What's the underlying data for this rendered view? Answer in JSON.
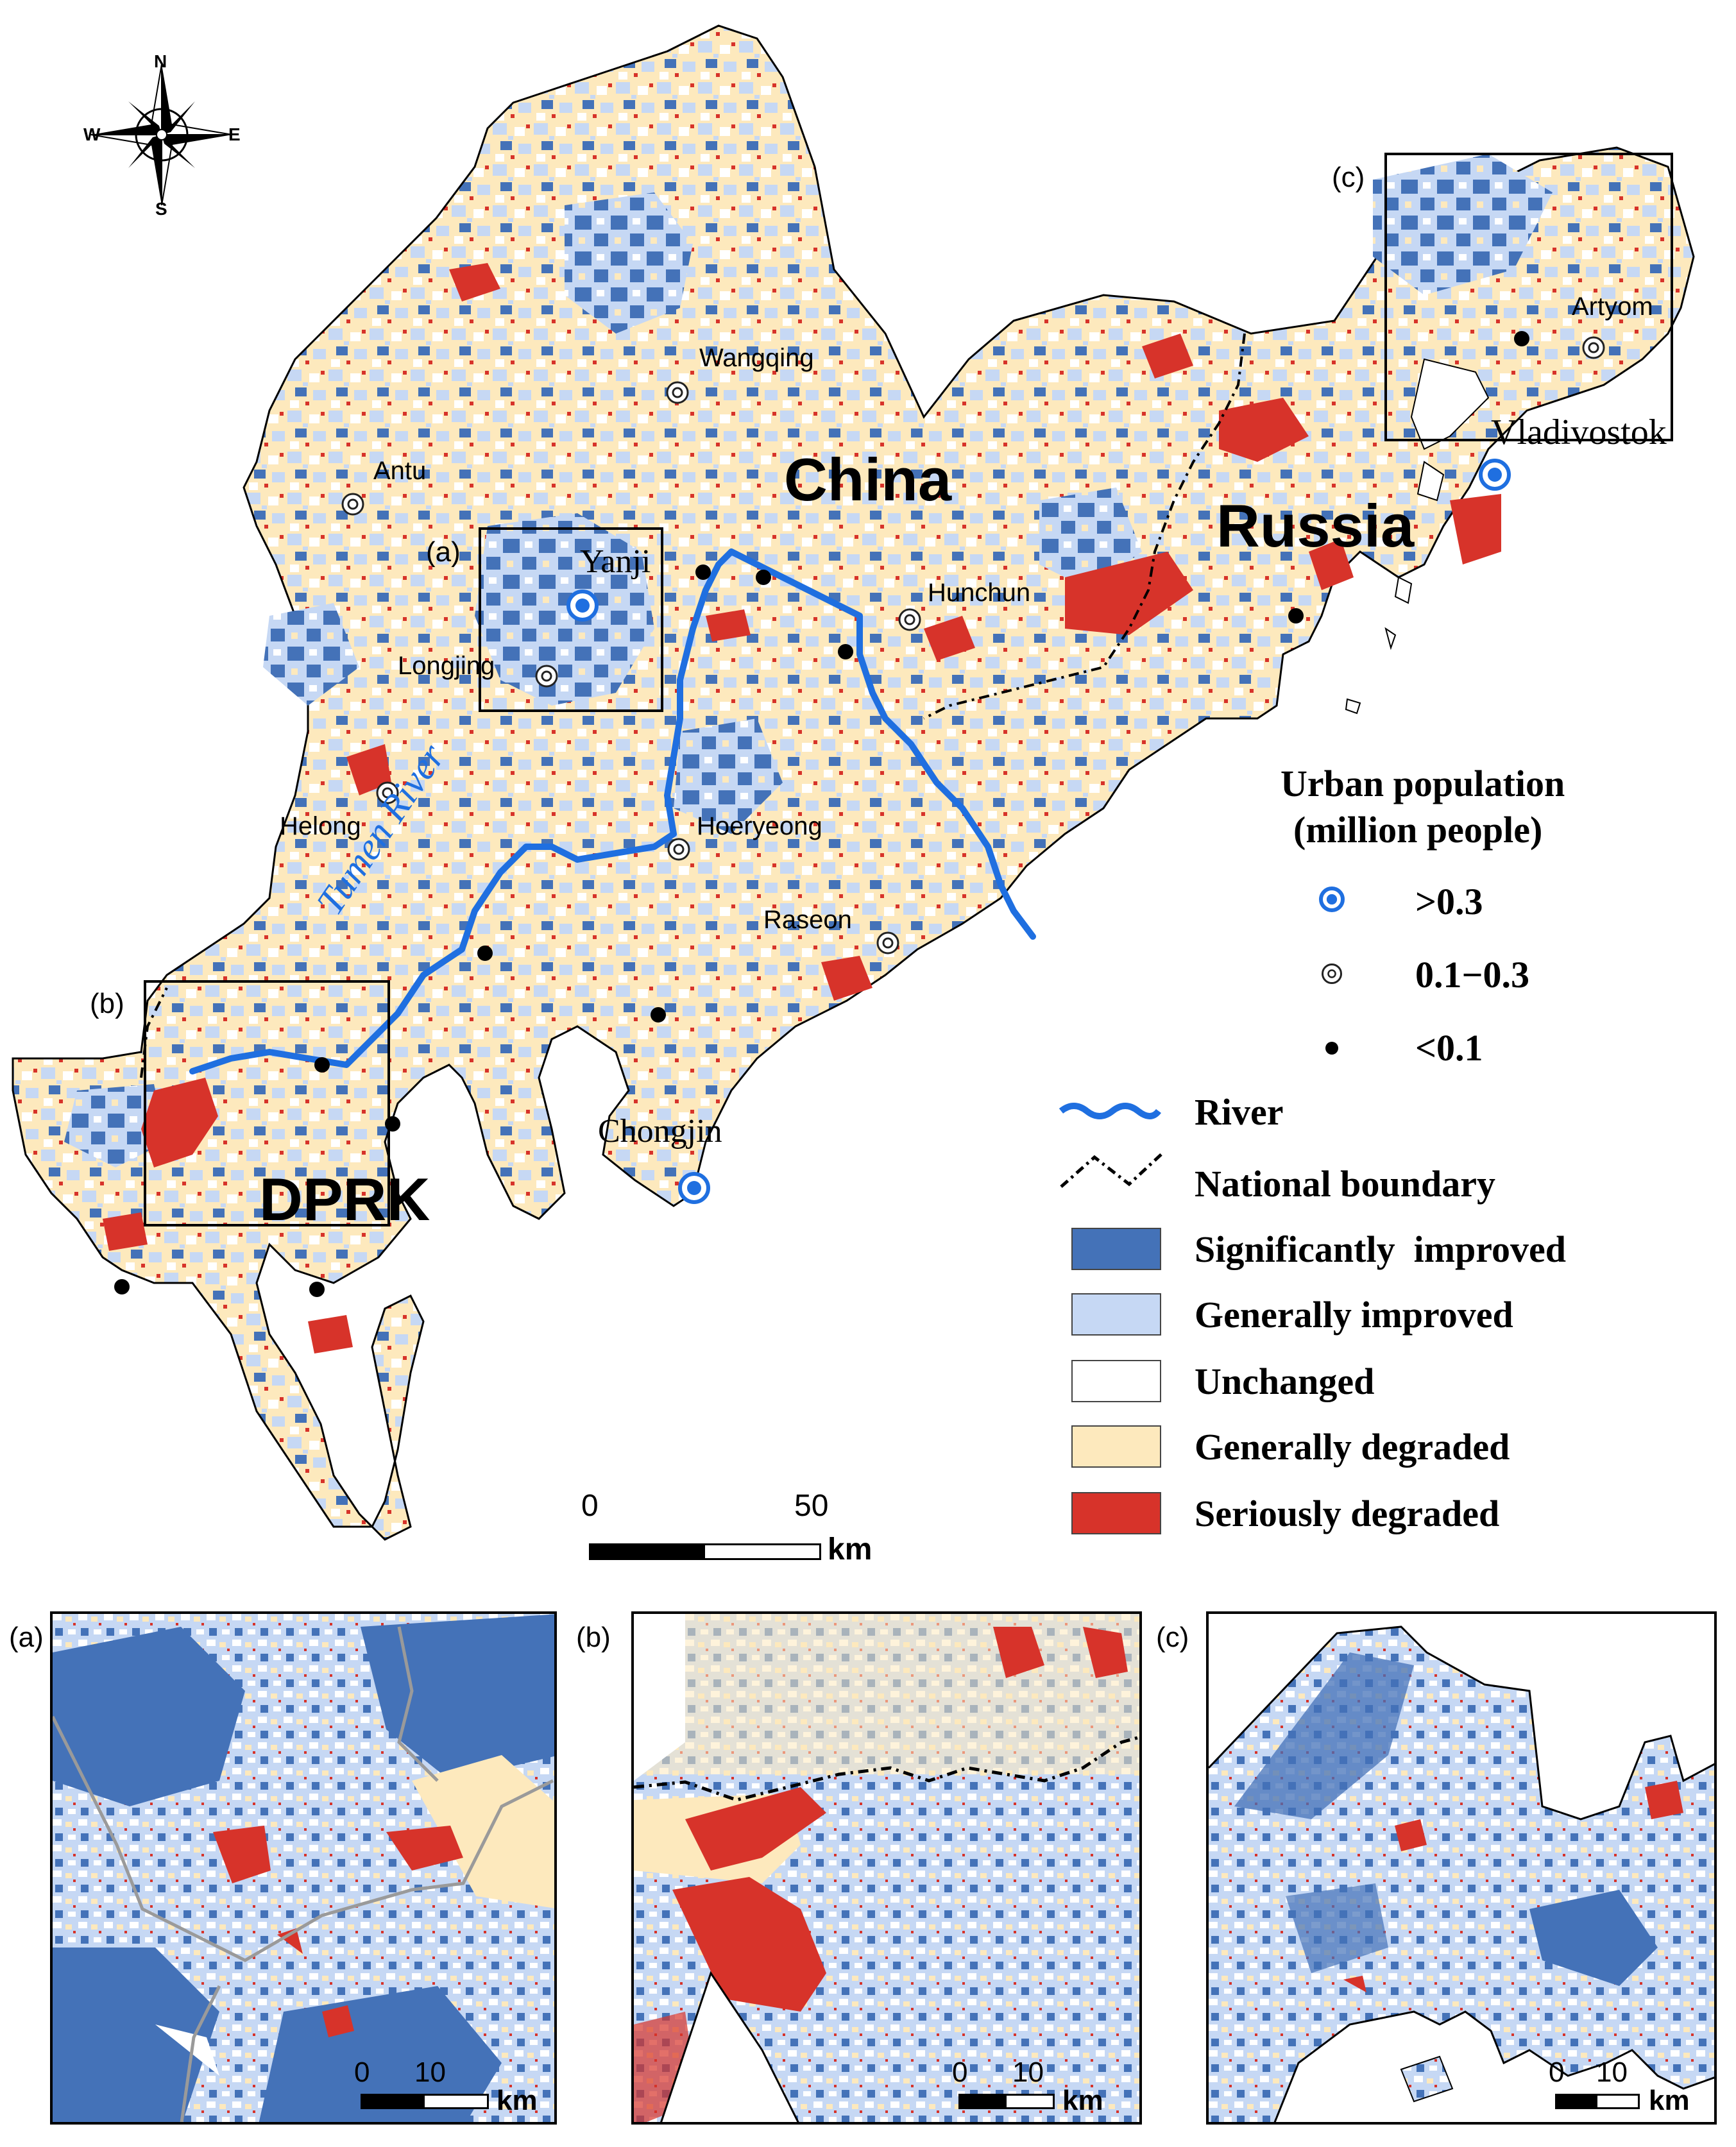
{
  "compass": {
    "n": "N",
    "s": "S",
    "e": "E",
    "w": "W"
  },
  "countries": {
    "china": "China",
    "russia": "Russia",
    "dprk": "DPRK"
  },
  "river_label": "Tumen River",
  "inset_labels": {
    "a": "(a)",
    "b": "(b)",
    "c": "(c)"
  },
  "cities": [
    {
      "name": "Yanji",
      "class": ">0.3"
    },
    {
      "name": "Chongjin",
      "class": ">0.3"
    },
    {
      "name": "Vladivostok",
      "class": ">0.3"
    },
    {
      "name": "Wangqing",
      "class": "0.1–0.3"
    },
    {
      "name": "Antu",
      "class": "0.1–0.3"
    },
    {
      "name": "Longjing",
      "class": "0.1–0.3"
    },
    {
      "name": "Helong",
      "class": "0.1–0.3"
    },
    {
      "name": "Hoeryeong",
      "class": "0.1–0.3"
    },
    {
      "name": "Raseon",
      "class": "0.1–0.3"
    },
    {
      "name": "Hunchun",
      "class": "0.1–0.3"
    },
    {
      "name": "Artyom",
      "class": "0.1–0.3"
    }
  ],
  "legend": {
    "title_line1": "Urban population",
    "title_line2": "(million people)",
    "pop_classes": [
      ">0.3",
      "0.1−0.3",
      "<0.1"
    ],
    "river": "River",
    "boundary": "National boundary",
    "classes": [
      {
        "label": "Significantly  improved",
        "color": "#4472b8"
      },
      {
        "label": "Generally improved",
        "color": "#c6d8f4"
      },
      {
        "label": "Unchanged",
        "color": "#ffffff"
      },
      {
        "label": "Generally degraded",
        "color": "#fde9bd"
      },
      {
        "label": "Seriously degraded",
        "color": "#d7332a"
      }
    ]
  },
  "scalebar_main": {
    "zero": "0",
    "max": "50",
    "unit": "km"
  },
  "scalebar_inset": {
    "zero": "0",
    "max": "10",
    "unit": "km"
  },
  "colors": {
    "river": "#1f6fe0",
    "sig_improved": "#4472b8",
    "gen_improved": "#c6d8f4",
    "gen_degraded": "#fde9bd",
    "ser_degraded": "#d7332a"
  }
}
